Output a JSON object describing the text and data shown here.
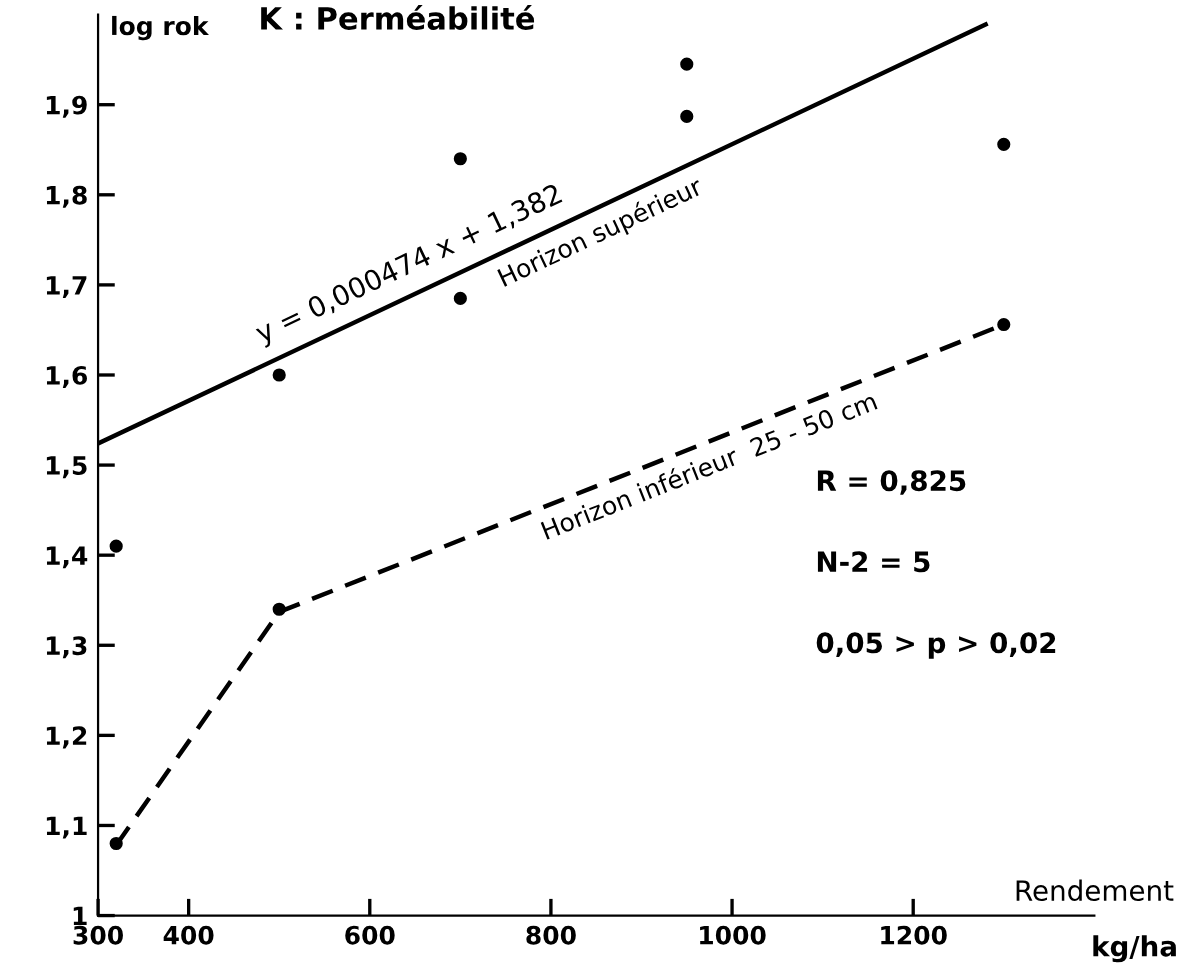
{
  "chart_data": {
    "type": "scatter",
    "title": "K : Perméabilité",
    "ylabel": "log rok",
    "xlabel": "Rendement",
    "xlim": [
      300,
      1400
    ],
    "ylim": [
      1,
      2.0
    ],
    "xticks": [
      300,
      400,
      600,
      800,
      1000,
      1200
    ],
    "yticks": [
      {
        "value": 1,
        "label": "1"
      },
      {
        "value": 1.1,
        "label": "1,1"
      },
      {
        "value": 1.2,
        "label": "1,2"
      },
      {
        "value": 1.3,
        "label": "1,3"
      },
      {
        "value": 1.4,
        "label": "1,4"
      },
      {
        "value": 1.5,
        "label": "1,5"
      },
      {
        "value": 1.6,
        "label": "1,6"
      },
      {
        "value": 1.7,
        "label": "1,7"
      },
      {
        "value": 1.8,
        "label": "1,8"
      },
      {
        "value": 1.9,
        "label": "1,9"
      }
    ],
    "grid": false,
    "series": [
      {
        "color": "#000000",
        "marker": "circle",
        "x": [
          320,
          320,
          500,
          500,
          700,
          700,
          950,
          950,
          1300,
          1300
        ],
        "values": [
          1.41,
          1.08,
          1.34,
          1.6,
          1.84,
          1.685,
          1.945,
          1.887,
          1.856,
          1.656
        ]
      },
      {
        "type": "line",
        "color": "#000000",
        "line_style": "solid",
        "marker": "none",
        "x": [
          300,
          1280
        ],
        "values": [
          1.524,
          1.989
        ]
      },
      {
        "type": "line",
        "color": "#000000",
        "line_style": "dashed",
        "marker": "none",
        "x": [
          320,
          500,
          1300
        ],
        "values": [
          1.078,
          1.337,
          1.656
        ]
      }
    ],
    "annotations": [
      "y = 0,000474 x + 1,382",
      "Horizon supérieur",
      "Horizon inférieur  25 - 50 cm",
      "R = 0,825",
      "N-2 = 5",
      "0,05 > p > 0,02",
      "kg/ha"
    ]
  }
}
